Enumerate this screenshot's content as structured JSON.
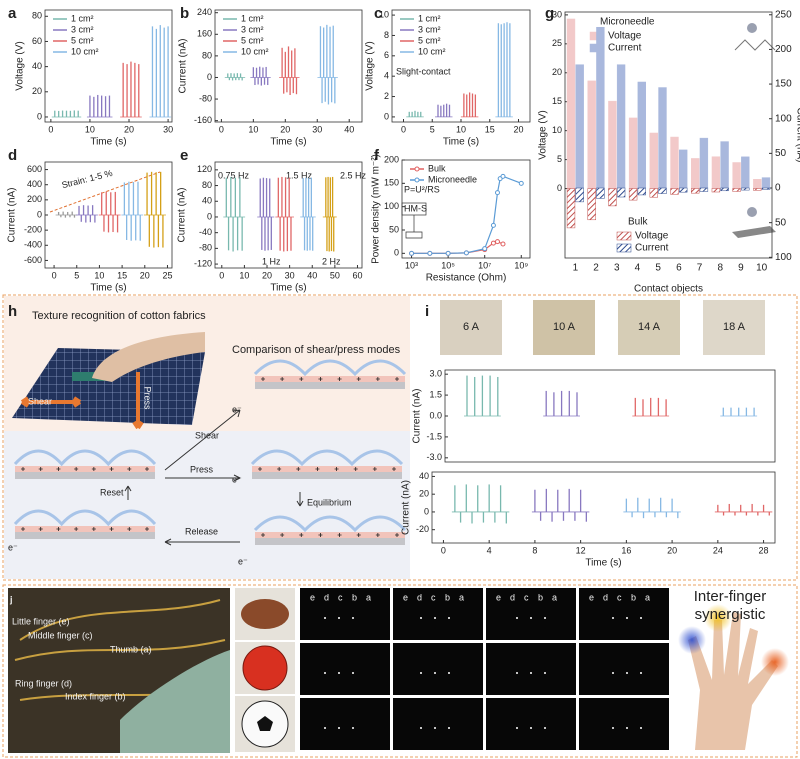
{
  "chart_data": [
    {
      "type": "spike",
      "label": "a",
      "xlabel": "Time (s)",
      "ylabel": "Voltage (V)",
      "xlim": [
        -1.5,
        31
      ],
      "ylim": [
        -4,
        85
      ],
      "xticks": [
        0,
        10,
        20,
        30
      ],
      "yticks": [
        0,
        20,
        40,
        60,
        80
      ],
      "legend": "upper-left",
      "series": [
        {
          "name": "1 cm²",
          "color": "#78b8ae",
          "x": [
            1,
            2,
            3,
            4,
            5,
            6,
            7
          ],
          "values": [
            5,
            4.8,
            5.1,
            5,
            4.9,
            5.2,
            5
          ]
        },
        {
          "name": "3 cm²",
          "color": "#8878c0",
          "x": [
            10,
            11,
            12,
            13,
            14,
            15
          ],
          "values": [
            17,
            16,
            17.5,
            17,
            16.5,
            17
          ]
        },
        {
          "name": "5 cm²",
          "color": "#e06666",
          "x": [
            18.5,
            19.5,
            20.5,
            21.5,
            22.5
          ],
          "values": [
            43,
            42,
            44,
            43,
            42
          ]
        },
        {
          "name": "10 cm²",
          "color": "#86b8e4",
          "x": [
            26,
            27,
            28,
            29,
            30
          ],
          "values": [
            72,
            70,
            73,
            71,
            72
          ]
        }
      ]
    },
    {
      "type": "spike",
      "label": "b",
      "xlabel": "Time (s)",
      "ylabel": "Current (nA)",
      "xlim": [
        -2,
        44
      ],
      "ylim": [
        -165,
        250
      ],
      "xticks": [
        0,
        10,
        20,
        30,
        40
      ],
      "yticks": [
        -160,
        -80,
        0,
        80,
        160,
        240
      ],
      "legend": "upper-left",
      "series": [
        {
          "name": "1 cm²",
          "color": "#78b8ae",
          "x": [
            2,
            2.5,
            3,
            3.5,
            4,
            4.5,
            5,
            5.5,
            6,
            6.5
          ],
          "values": [
            15,
            -10,
            16,
            -11,
            15,
            -10,
            16,
            -10,
            15,
            -11
          ]
        },
        {
          "name": "3 cm²",
          "color": "#8878c0",
          "x": [
            10,
            10.5,
            11,
            11.5,
            12,
            12.5,
            13,
            13.5,
            14,
            14.5
          ],
          "values": [
            38,
            -28,
            36,
            -26,
            40,
            -30,
            37,
            -27,
            39,
            -28
          ]
        },
        {
          "name": "5 cm²",
          "color": "#e06666",
          "x": [
            19,
            19.5,
            20,
            20.5,
            21,
            21.5,
            22,
            22.5,
            23,
            23.5
          ],
          "values": [
            110,
            -60,
            95,
            -55,
            115,
            -65,
            100,
            -58,
            108,
            -62
          ]
        },
        {
          "name": "10 cm²",
          "color": "#86b8e4",
          "x": [
            31,
            31.5,
            32,
            32.5,
            33,
            33.5,
            34,
            34.5,
            35,
            35.5
          ],
          "values": [
            190,
            -95,
            185,
            -90,
            195,
            -100,
            188,
            -92,
            192,
            -96
          ]
        }
      ]
    },
    {
      "type": "spike",
      "label": "c",
      "xlabel": "Time (s)",
      "ylabel": "Voltage (V)",
      "xlim": [
        -2,
        22
      ],
      "ylim": [
        -0.5,
        10.5
      ],
      "xticks": [
        0,
        5,
        10,
        15,
        20
      ],
      "yticks": [
        0,
        2,
        4,
        6,
        8,
        10
      ],
      "legend": "upper-left",
      "annotations": [
        "Slight-contact"
      ],
      "series": [
        {
          "name": "1 cm²",
          "color": "#78b8ae",
          "x": [
            1,
            1.5,
            2,
            2.5,
            3
          ],
          "values": [
            0.5,
            0.5,
            0.6,
            0.5,
            0.5
          ]
        },
        {
          "name": "3 cm²",
          "color": "#8878c0",
          "x": [
            6,
            6.5,
            7,
            7.5,
            8
          ],
          "values": [
            1.2,
            1.1,
            1.2,
            1.3,
            1.2
          ]
        },
        {
          "name": "5 cm²",
          "color": "#e06666",
          "x": [
            10.5,
            11,
            11.5,
            12,
            12.5
          ],
          "values": [
            2.3,
            2.2,
            2.4,
            2.3,
            2.2
          ]
        },
        {
          "name": "10 cm²",
          "color": "#86b8e4",
          "x": [
            16.5,
            17,
            17.5,
            18,
            18.5
          ],
          "values": [
            9.2,
            9.1,
            9.2,
            9.3,
            9.2
          ]
        }
      ]
    },
    {
      "type": "spike",
      "label": "d",
      "xlabel": "Time (s)",
      "ylabel": "Current (nA)",
      "xlim": [
        -2,
        26
      ],
      "ylim": [
        -700,
        700
      ],
      "xticks": [
        0,
        5,
        10,
        15,
        20,
        25
      ],
      "yticks": [
        -600,
        -400,
        -200,
        0,
        200,
        400,
        600
      ],
      "annotations": [
        "Strain: 1-5 %"
      ],
      "series": [
        {
          "color": "#999999",
          "x": [
            1,
            1.5,
            2,
            2.5,
            3,
            3.5,
            4,
            4.5
          ],
          "values": [
            40,
            -30,
            45,
            -35,
            40,
            -30,
            45,
            -35
          ]
        },
        {
          "color": "#8878c0",
          "x": [
            5.5,
            6,
            6.5,
            7,
            7.5,
            8,
            8.5,
            9
          ],
          "values": [
            120,
            -90,
            130,
            -100,
            125,
            -95,
            130,
            -100
          ]
        },
        {
          "color": "#e06666",
          "x": [
            10.5,
            11,
            11.5,
            12,
            12.5,
            13,
            13.5,
            14
          ],
          "values": [
            300,
            -220,
            310,
            -230,
            300,
            -225,
            305,
            -230
          ]
        },
        {
          "color": "#86b8e4",
          "x": [
            15.5,
            16,
            16.5,
            17,
            17.5,
            18,
            18.5,
            19
          ],
          "values": [
            430,
            -330,
            440,
            -340,
            435,
            -335,
            440,
            -340
          ]
        },
        {
          "color": "#d4a017",
          "x": [
            20.5,
            21,
            21.5,
            22,
            22.5,
            23,
            23.5,
            24
          ],
          "values": [
            560,
            -420,
            570,
            -430,
            565,
            -425,
            570,
            -430
          ]
        }
      ]
    },
    {
      "type": "spike",
      "label": "e",
      "xlabel": "Time (s)",
      "ylabel": "Current (nA)",
      "xlim": [
        -3,
        62
      ],
      "ylim": [
        -130,
        140
      ],
      "xticks": [
        0,
        10,
        20,
        30,
        40,
        50,
        60
      ],
      "yticks": [
        -120,
        -80,
        -40,
        0,
        40,
        80,
        120
      ],
      "annotations": [
        "0.75 Hz",
        "1 Hz",
        "1.5 Hz",
        "2 Hz",
        "2.5 Hz"
      ],
      "series": [
        {
          "color": "#78b8ae",
          "x": [
            2,
            3,
            4,
            5,
            6,
            7,
            8,
            9
          ],
          "values": [
            100,
            -85,
            102,
            -88,
            100,
            -85,
            101,
            -86
          ]
        },
        {
          "color": "#8878c0",
          "x": [
            17,
            17.7,
            18.4,
            19.1,
            19.8,
            20.5,
            21.2,
            21.9
          ],
          "values": [
            98,
            -84,
            100,
            -86,
            99,
            -85,
            98,
            -84
          ]
        },
        {
          "color": "#e06666",
          "x": [
            25,
            25.8,
            26.6,
            27.4,
            28.2,
            29,
            29.8,
            30.6
          ],
          "values": [
            100,
            -86,
            102,
            -88,
            101,
            -87,
            100,
            -86
          ]
        },
        {
          "color": "#86b8e4",
          "x": [
            36,
            36.6,
            37.2,
            37.8,
            38.4,
            39,
            39.6,
            40.2
          ],
          "values": [
            99,
            -85,
            100,
            -86,
            99,
            -85,
            100,
            -86
          ]
        },
        {
          "color": "#d4a017",
          "x": [
            46,
            46.5,
            47,
            47.5,
            48,
            48.5,
            49,
            49.5
          ],
          "values": [
            101,
            -87,
            102,
            -88,
            101,
            -87,
            102,
            -88
          ]
        }
      ]
    },
    {
      "type": "line",
      "label": "f",
      "xlabel": "Resistance (Ohm)",
      "ylabel": "Power density (mW m⁻²)",
      "xscale": "log",
      "xlim": [
        300,
        3000000000
      ],
      "ylim": [
        -10,
        200
      ],
      "xticks": [
        {
          "value": 1000,
          "label": "10³"
        },
        {
          "value": 100000,
          "label": "10⁵"
        },
        {
          "value": 10000000,
          "label": "10⁷"
        },
        {
          "value": 1000000000,
          "label": "10⁹"
        }
      ],
      "yticks": [
        0,
        50,
        100,
        150,
        200
      ],
      "legend": "upper-left",
      "annotations": [
        "P=U²/RS",
        "HM-S"
      ],
      "series": [
        {
          "name": "Bulk",
          "color": "#e06060",
          "x": [
            1000,
            10000,
            100000,
            1000000,
            10000000,
            30000000,
            50000000,
            100000000
          ],
          "values": [
            0,
            0,
            0,
            1,
            8,
            22,
            25,
            20
          ]
        },
        {
          "name": "Microneedle",
          "color": "#5b9bd5",
          "x": [
            1000,
            10000,
            100000,
            1000000,
            10000000,
            30000000,
            50000000,
            70000000,
            100000000,
            1000000000
          ],
          "values": [
            0,
            0,
            0,
            1,
            10,
            60,
            130,
            160,
            165,
            150
          ]
        }
      ]
    },
    {
      "type": "bar",
      "label": "g",
      "xlabel": "Contact objects",
      "ylabel": "Voltage (V)",
      "y2label": "Current (nA)",
      "categories": [
        "1",
        "2",
        "3",
        "4",
        "5",
        "6",
        "7",
        "8",
        "9",
        "10"
      ],
      "ylim": [
        -12,
        30.5
      ],
      "yticks": [
        0,
        5,
        10,
        15,
        20,
        25,
        30
      ],
      "y2lim": [
        -101,
        254
      ],
      "y2ticks": [
        0,
        50,
        100,
        150,
        200,
        250,
        {
          "value": -50,
          "label": "50"
        },
        {
          "value": -100,
          "label": "100"
        }
      ],
      "groups": [
        {
          "name": "Microneedle",
          "series": [
            {
              "name": "Voltage",
              "color": "#f2c9c9",
              "values": [
                29.3,
                18.6,
                15.1,
                12.2,
                9.6,
                8.9,
                5.2,
                5.5,
                4.5,
                1.6
              ]
            },
            {
              "name": "Current",
              "color": "#a9b8dd",
              "axis": "y2",
              "values": [
                178,
                232,
                178,
                153,
                145,
                55,
                72,
                67,
                45,
                15
              ]
            }
          ]
        },
        {
          "name": "Bulk",
          "series": [
            {
              "name": "Voltage",
              "color": "#c0504d",
              "hatched": true,
              "values": [
                -6.8,
                -5.4,
                -3,
                -2,
                -1.5,
                -1,
                -0.8,
                -0.6,
                -0.5,
                -0.3
              ]
            },
            {
              "name": "Current",
              "color": "#2f4b8f",
              "hatched": true,
              "axis": "y2",
              "values": [
                -20,
                -15,
                -13,
                -10,
                -8,
                -6,
                -5,
                -4,
                -3,
                -2
              ]
            }
          ]
        }
      ]
    },
    {
      "type": "spike",
      "ylabel": "Current (nA)",
      "xlim": [
        -1,
        29
      ],
      "ylim": [
        -3.3,
        3.3
      ],
      "yticks": [
        {
          "value": 3,
          "label": "3.0"
        },
        1.5,
        {
          "value": 0,
          "label": "0.0"
        },
        -1.5,
        {
          "value": -3,
          "label": "-3.0"
        }
      ],
      "series": [
        {
          "color": "#78b8ae",
          "x": [
            1,
            1.7,
            2.4,
            3.1,
            3.8
          ],
          "values": [
            2.9,
            2.8,
            2.9,
            2.9,
            2.8
          ]
        },
        {
          "color": "#8878c0",
          "x": [
            8.2,
            8.9,
            9.6,
            10.3,
            11
          ],
          "values": [
            1.8,
            1.7,
            1.8,
            1.8,
            1.7
          ]
        },
        {
          "color": "#e06666",
          "x": [
            16.3,
            17,
            17.7,
            18.4,
            19.1
          ],
          "values": [
            1.3,
            1.2,
            1.3,
            1.3,
            1.2
          ]
        },
        {
          "color": "#86b8e4",
          "x": [
            24.3,
            25,
            25.7,
            26.4,
            27.1
          ],
          "values": [
            0.6,
            0.6,
            0.6,
            0.6,
            0.6
          ]
        }
      ]
    },
    {
      "type": "spike",
      "xlabel": "Time (s)",
      "ylabel": "Current (nA)",
      "xlim": [
        -1,
        29
      ],
      "ylim": [
        -35,
        45
      ],
      "xticks": [
        0,
        4,
        8,
        12,
        16,
        20,
        24,
        28
      ],
      "yticks": [
        -20,
        0,
        20,
        40
      ],
      "series": [
        {
          "color": "#78b8ae",
          "x": [
            1,
            1.5,
            2,
            2.5,
            3,
            3.5,
            4,
            4.5,
            5,
            5.5
          ],
          "values": [
            30,
            -12,
            31,
            -13,
            30,
            -12,
            31,
            -12,
            30,
            -13
          ]
        },
        {
          "color": "#8878c0",
          "x": [
            8,
            8.5,
            9,
            9.5,
            10,
            10.5,
            11,
            11.5,
            12,
            12.5
          ],
          "values": [
            25,
            -10,
            26,
            -11,
            25,
            -10,
            26,
            -10,
            25,
            -11
          ]
        },
        {
          "color": "#86b8e4",
          "x": [
            16,
            16.5,
            17,
            17.5,
            18,
            18.5,
            19,
            19.5,
            20,
            20.5
          ],
          "values": [
            15,
            -6,
            16,
            -7,
            15,
            -6,
            16,
            -6,
            15,
            -7
          ]
        },
        {
          "color": "#e06666",
          "x": [
            24,
            24.5,
            25,
            25.5,
            26,
            26.5,
            27,
            27.5,
            28,
            28.5
          ],
          "values": [
            8,
            -4,
            9,
            -4,
            8,
            -4,
            9,
            -4,
            8,
            -4
          ]
        }
      ]
    }
  ],
  "panels": {
    "h": {
      "label": "h",
      "title": "Texture recognition of cotton fabrics",
      "subtitle": "Comparison of shear/press modes",
      "photo_labels": [
        "Shear",
        "Press"
      ],
      "steps": [
        "Shear",
        "Press",
        "Equilibrium",
        "Release",
        "Reset"
      ],
      "electron": "e⁻"
    },
    "i": {
      "label": "i",
      "fabrics": [
        "6 A",
        "10 A",
        "14 A",
        "18 A"
      ]
    },
    "j": {
      "label": "j",
      "fingers": [
        "Little finger (e)",
        "Middle finger (c)",
        "Thumb (a)",
        "Ring finger (d)",
        "Index finger (b)"
      ],
      "finger_letters": [
        "e",
        "d",
        "c",
        "b",
        "a"
      ],
      "caption": [
        "Inter-finger",
        "synergistic"
      ]
    }
  }
}
